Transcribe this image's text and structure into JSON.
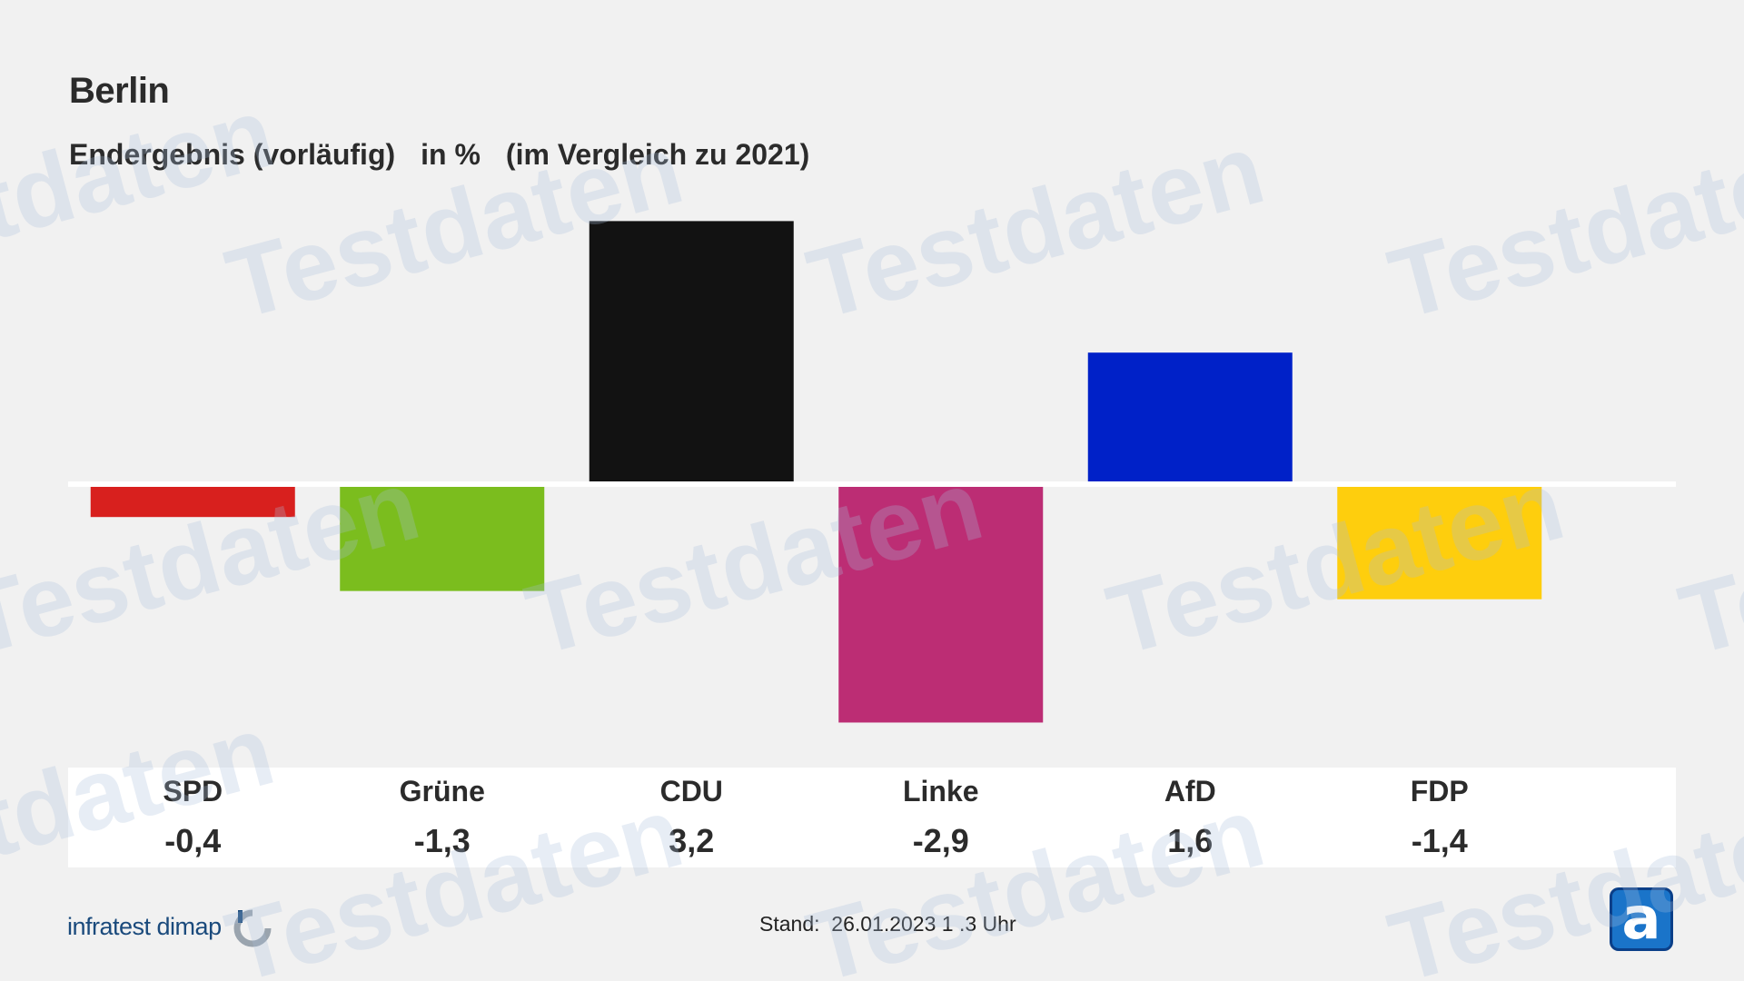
{
  "header": {
    "title": "Berlin",
    "subtitle_parts": [
      "Endergebnis (vorläufig)",
      "in %",
      "(im Vergleich zu 2021)"
    ]
  },
  "chart_data": {
    "type": "bar",
    "categories": [
      "SPD",
      "Grüne",
      "CDU",
      "Linke",
      "AfD",
      "FDP"
    ],
    "values": [
      -0.4,
      -1.3,
      3.2,
      -2.9,
      1.6,
      -1.4
    ],
    "value_labels": [
      "-0,4",
      "-1,3",
      "3,2",
      "-2,9",
      "1,6",
      "-1,4"
    ],
    "colors": [
      "#d8201e",
      "#7bbd1e",
      "#121212",
      "#bc2d74",
      "#0021c8",
      "#fece0d"
    ],
    "title": "Berlin",
    "subtitle": "Endergebnis (vorläufig) in % (im Vergleich zu 2021)",
    "ylim": [
      -2.9,
      3.2
    ],
    "grid": false
  },
  "watermark": "Testdaten",
  "footer": {
    "source": "infratest dimap",
    "stand_label": "Stand:",
    "stand_value": "26.01.2023 1 .3 Uhr"
  }
}
